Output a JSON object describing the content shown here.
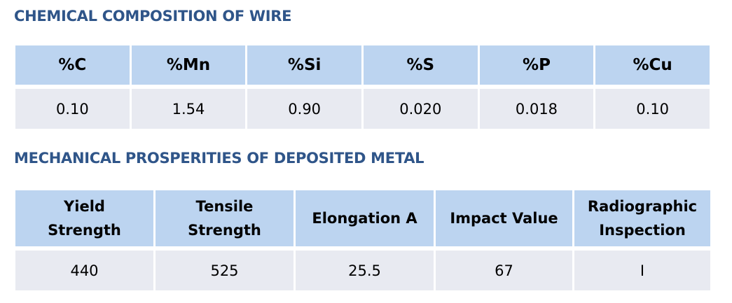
{
  "chemical": {
    "title": "CHEMICAL COMPOSITION OF WIRE",
    "headers": [
      "%C",
      "%Mn",
      "%Si",
      "%S",
      "%P",
      "%Cu"
    ],
    "values": [
      "0.10",
      "1.54",
      "0.90",
      "0.020",
      "0.018",
      "0.10"
    ]
  },
  "mechanical": {
    "title": "MECHANICAL PROSPERITIES OF DEPOSITED METAL",
    "headers": [
      {
        "line1": "Yield",
        "line2": "Strength"
      },
      {
        "line1": "Tensile",
        "line2": "Strength"
      },
      {
        "line1": "Elongation A",
        "line2": ""
      },
      {
        "line1": "Impact Value",
        "line2": ""
      },
      {
        "line1": "Radiographic",
        "line2": "Inspection"
      }
    ],
    "values": [
      "440",
      "525",
      "25.5",
      "67",
      "I"
    ]
  },
  "colors": {
    "title": "#2f5589",
    "header_fill": "#bcd4f0",
    "data_fill": "#e8eaf1"
  }
}
